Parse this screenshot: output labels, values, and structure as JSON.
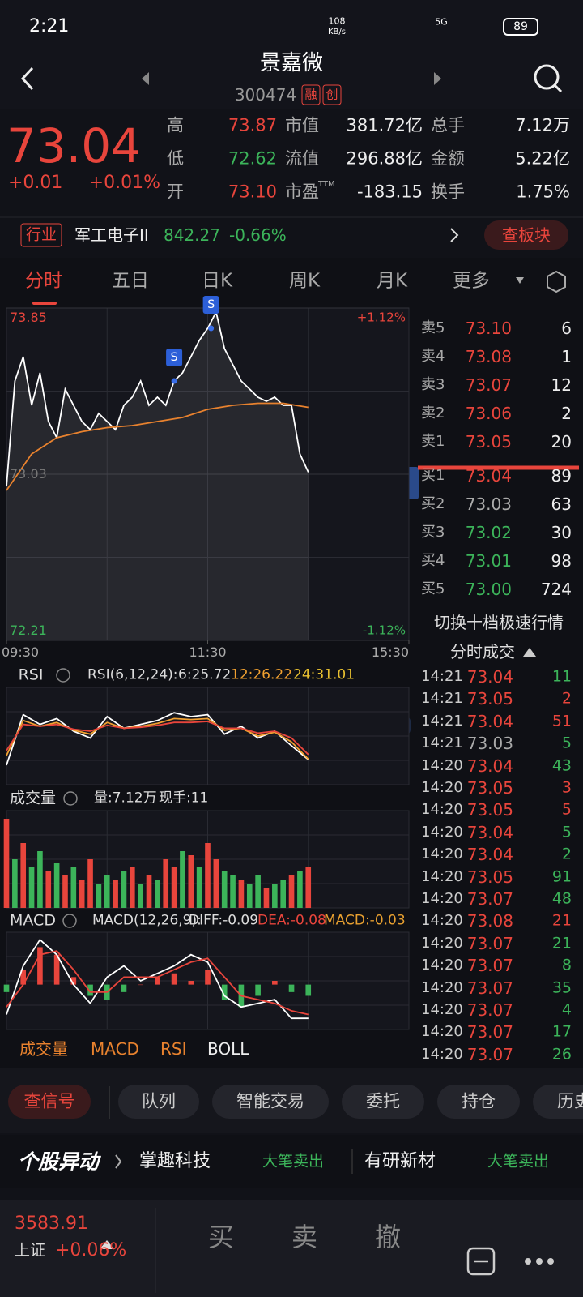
{
  "status_bar": {
    "time": "2:21",
    "speed": "108",
    "speed_unit": "KB/s",
    "network": "5G",
    "battery": "89"
  },
  "header": {
    "title": "景嘉微",
    "code": "300474",
    "badges": [
      "融",
      "创"
    ]
  },
  "quote": {
    "price": "73.04",
    "change": "+0.01",
    "change_pct": "+0.01%",
    "stats": [
      [
        "高",
        "73.87",
        "市值",
        "381.72亿",
        "总手",
        "7.12万"
      ],
      [
        "低",
        "72.62",
        "流值",
        "296.88亿",
        "金额",
        "5.22亿"
      ],
      [
        "开",
        "73.10",
        "市盈",
        "-183.15",
        "换手",
        "1.75%"
      ]
    ],
    "pe_sup": "TTM"
  },
  "industry": {
    "label": "行业",
    "name": "军工电子II",
    "index": "842.27",
    "change": "-0.66%",
    "button": "查板块"
  },
  "tabs": [
    "分时",
    "五日",
    "日K",
    "周K",
    "月K",
    "更多"
  ],
  "chart_data": [
    {
      "type": "line",
      "ylim": [
        72.21,
        73.85
      ],
      "yticks": [
        73.85,
        73.03,
        72.21
      ],
      "right_labels": [
        "+1.12%",
        "-1.12%"
      ],
      "xlim": [
        0,
        240
      ],
      "xticks": [
        {
          "value": 0,
          "label": "09:30"
        },
        {
          "value": 120,
          "label": "11:30"
        },
        {
          "value": 240,
          "label": "15:30"
        }
      ],
      "color_up": "#e8453c",
      "color_down": "#3cb45a",
      "series": [
        {
          "color": "#ffffff",
          "x": [
            0,
            5,
            10,
            15,
            20,
            25,
            30,
            35,
            40,
            45,
            50,
            55,
            60,
            65,
            70,
            75,
            80,
            85,
            90,
            95,
            100,
            105,
            110,
            115,
            120,
            125,
            130,
            135,
            140,
            145,
            150,
            155,
            160,
            165,
            170,
            175,
            180
          ],
          "values": [
            72.97,
            73.49,
            73.61,
            73.37,
            73.53,
            73.29,
            73.21,
            73.45,
            73.37,
            73.29,
            73.25,
            73.33,
            73.29,
            73.25,
            73.37,
            73.41,
            73.49,
            73.37,
            73.41,
            73.37,
            73.49,
            73.53,
            73.61,
            73.69,
            73.75,
            73.83,
            73.65,
            73.57,
            73.49,
            73.45,
            73.41,
            73.39,
            73.41,
            73.37,
            73.37,
            73.13,
            73.04
          ]
        },
        {
          "color": "#e8822e",
          "x": [
            0,
            15,
            30,
            45,
            60,
            75,
            90,
            105,
            120,
            135,
            150,
            165,
            180
          ],
          "values": [
            72.95,
            73.13,
            73.21,
            73.24,
            73.26,
            73.27,
            73.29,
            73.31,
            73.35,
            73.37,
            73.38,
            73.38,
            73.36
          ]
        }
      ],
      "markers": [
        {
          "x": 100,
          "label": "S"
        },
        {
          "x": 122,
          "label": "S"
        }
      ]
    },
    {
      "type": "line",
      "ylim": [
        0,
        100
      ],
      "xlim": [
        0,
        240
      ],
      "series": [
        {
          "color": "#ffffff",
          "x": [
            0,
            10,
            20,
            30,
            40,
            50,
            60,
            70,
            80,
            90,
            100,
            110,
            120,
            130,
            140,
            150,
            160,
            170,
            180
          ],
          "values": [
            20,
            72,
            62,
            68,
            55,
            48,
            70,
            58,
            62,
            66,
            74,
            70,
            72,
            52,
            60,
            48,
            55,
            40,
            25.72
          ]
        },
        {
          "color": "#f0a030",
          "x": [
            0,
            10,
            20,
            30,
            40,
            50,
            60,
            70,
            80,
            90,
            100,
            110,
            120,
            130,
            140,
            150,
            160,
            170,
            180
          ],
          "values": [
            30,
            66,
            60,
            64,
            56,
            52,
            64,
            58,
            60,
            63,
            68,
            67,
            68,
            56,
            58,
            50,
            54,
            44,
            26.22
          ]
        },
        {
          "color": "#e8453c",
          "x": [
            0,
            10,
            20,
            30,
            40,
            50,
            60,
            70,
            80,
            90,
            100,
            110,
            120,
            130,
            140,
            150,
            160,
            170,
            180
          ],
          "values": [
            35,
            62,
            60,
            62,
            57,
            55,
            61,
            58,
            59,
            61,
            64,
            64,
            65,
            58,
            58,
            53,
            55,
            48,
            31.01
          ]
        }
      ]
    },
    {
      "type": "bar",
      "ylim": [
        0,
        1200
      ],
      "xlim": [
        0,
        240
      ],
      "x": [
        0,
        5,
        10,
        15,
        20,
        25,
        30,
        35,
        40,
        45,
        50,
        55,
        60,
        65,
        70,
        75,
        80,
        85,
        90,
        95,
        100,
        105,
        110,
        115,
        120,
        125,
        130,
        135,
        140,
        145,
        150,
        155,
        160,
        165,
        170,
        175,
        180
      ],
      "values": [
        1100,
        600,
        800,
        500,
        700,
        450,
        550,
        400,
        500,
        350,
        600,
        300,
        400,
        350,
        450,
        500,
        300,
        400,
        350,
        600,
        500,
        700,
        650,
        500,
        800,
        600,
        450,
        400,
        350,
        300,
        400,
        250,
        300,
        350,
        400,
        450,
        500
      ],
      "colors": [
        "#e8453c",
        "#3cb45a",
        "#e8453c",
        "#3cb45a",
        "#3cb45a",
        "#e8453c",
        "#3cb45a",
        "#e8453c",
        "#3cb45a",
        "#e8453c",
        "#e8453c",
        "#3cb45a",
        "#3cb45a",
        "#e8453c",
        "#3cb45a",
        "#e8453c",
        "#3cb45a",
        "#e8453c",
        "#3cb45a",
        "#e8453c",
        "#e8453c",
        "#3cb45a",
        "#e8453c",
        "#3cb45a",
        "#e8453c",
        "#e8453c",
        "#3cb45a",
        "#3cb45a",
        "#e8453c",
        "#3cb45a",
        "#3cb45a",
        "#e8453c",
        "#3cb45a",
        "#3cb45a",
        "#e8453c",
        "#3cb45a",
        "#e8453c"
      ]
    },
    {
      "type": "macd",
      "ylim": [
        -0.12,
        0.14
      ],
      "xlim": [
        0,
        240
      ],
      "x": [
        0,
        10,
        20,
        30,
        40,
        50,
        60,
        70,
        80,
        90,
        100,
        110,
        120,
        130,
        140,
        150,
        160,
        170,
        180
      ],
      "values": [
        -0.02,
        0.04,
        0.1,
        0.08,
        0.02,
        -0.03,
        -0.04,
        -0.02,
        0.0,
        0.02,
        0.03,
        0.01,
        0.04,
        -0.04,
        -0.06,
        -0.03,
        0.01,
        -0.02,
        -0.03
      ],
      "colors": [
        "#e8453c",
        "#3cb45a"
      ],
      "series": [
        {
          "color": "#ffffff",
          "values": [
            -0.08,
            0.05,
            0.12,
            0.08,
            0.0,
            -0.05,
            0.02,
            0.05,
            0.01,
            0.03,
            0.05,
            0.08,
            0.06,
            -0.03,
            -0.06,
            -0.05,
            -0.04,
            -0.09,
            -0.09
          ]
        },
        {
          "color": "#e8453c",
          "values": [
            -0.06,
            0.0,
            0.08,
            0.09,
            0.04,
            -0.02,
            -0.02,
            0.02,
            0.02,
            0.02,
            0.04,
            0.06,
            0.07,
            0.02,
            -0.03,
            -0.04,
            -0.05,
            -0.07,
            -0.08
          ]
        }
      ]
    }
  ],
  "order_book": {
    "asks": [
      [
        "卖5",
        "73.10",
        "6"
      ],
      [
        "卖4",
        "73.08",
        "1"
      ],
      [
        "卖3",
        "73.07",
        "12"
      ],
      [
        "卖2",
        "73.06",
        "2"
      ],
      [
        "卖1",
        "73.05",
        "20"
      ]
    ],
    "bids": [
      [
        "买1",
        "73.04",
        "89"
      ],
      [
        "买2",
        "73.03",
        "63"
      ],
      [
        "买3",
        "73.02",
        "30"
      ],
      [
        "买4",
        "73.01",
        "98"
      ],
      [
        "买5",
        "73.00",
        "724"
      ]
    ],
    "switch": "切换十档极速行情"
  },
  "trades": {
    "title": "分时成交",
    "rows": [
      [
        "14:21",
        "73.04",
        "11"
      ],
      [
        "14:21",
        "73.05",
        "2"
      ],
      [
        "14:21",
        "73.04",
        "51"
      ],
      [
        "14:21",
        "73.03",
        "5"
      ],
      [
        "14:20",
        "73.04",
        "43"
      ],
      [
        "14:20",
        "73.05",
        "3"
      ],
      [
        "14:20",
        "73.05",
        "5"
      ],
      [
        "14:20",
        "73.04",
        "5"
      ],
      [
        "14:20",
        "73.04",
        "2"
      ],
      [
        "14:20",
        "73.05",
        "91"
      ],
      [
        "14:20",
        "73.07",
        "48"
      ],
      [
        "14:20",
        "73.08",
        "21"
      ],
      [
        "14:20",
        "73.07",
        "21"
      ],
      [
        "14:20",
        "73.07",
        "8"
      ],
      [
        "14:20",
        "73.07",
        "35"
      ],
      [
        "14:20",
        "73.07",
        "4"
      ],
      [
        "14:20",
        "73.07",
        "17"
      ],
      [
        "14:20",
        "73.07",
        "26"
      ]
    ],
    "volume_colors": [
      "#3cb45a",
      "#e8453c",
      "#e8453c",
      "#3cb45a",
      "#3cb45a",
      "#e8453c",
      "#e8453c",
      "#3cb45a",
      "#3cb45a",
      "#3cb45a",
      "#3cb45a",
      "#e8453c",
      "#3cb45a",
      "#3cb45a",
      "#3cb45a",
      "#3cb45a",
      "#3cb45a",
      "#3cb45a"
    ]
  },
  "rsi": {
    "label": "RSI",
    "legend": "RSI(6,12,24):",
    "values": [
      "6:25.72",
      "12:26.22",
      "24:31.01"
    ]
  },
  "volume": {
    "label": "成交量",
    "info": [
      "量:7.12万",
      "现手:11"
    ]
  },
  "macd": {
    "label": "MACD",
    "legend": "MACD(12,26,9):",
    "values": [
      "DIFF:-0.09",
      "DEA:-0.08",
      "MACD:-0.03"
    ]
  },
  "indicator_tabs": [
    "成交量",
    "MACD",
    "RSI",
    "BOLL"
  ],
  "actions": [
    "查信号",
    "队列",
    "智能交易",
    "委托",
    "持仓",
    "历史"
  ],
  "ticker": {
    "title": "个股异动",
    "items": [
      [
        "掌趣科技",
        "大笔卖出"
      ],
      [
        "有研新材",
        "大笔卖出"
      ]
    ]
  },
  "footer": {
    "index": "3583.91",
    "name": "上证",
    "change": "+0.06%",
    "buttons": [
      "买",
      "卖",
      "撤"
    ]
  }
}
